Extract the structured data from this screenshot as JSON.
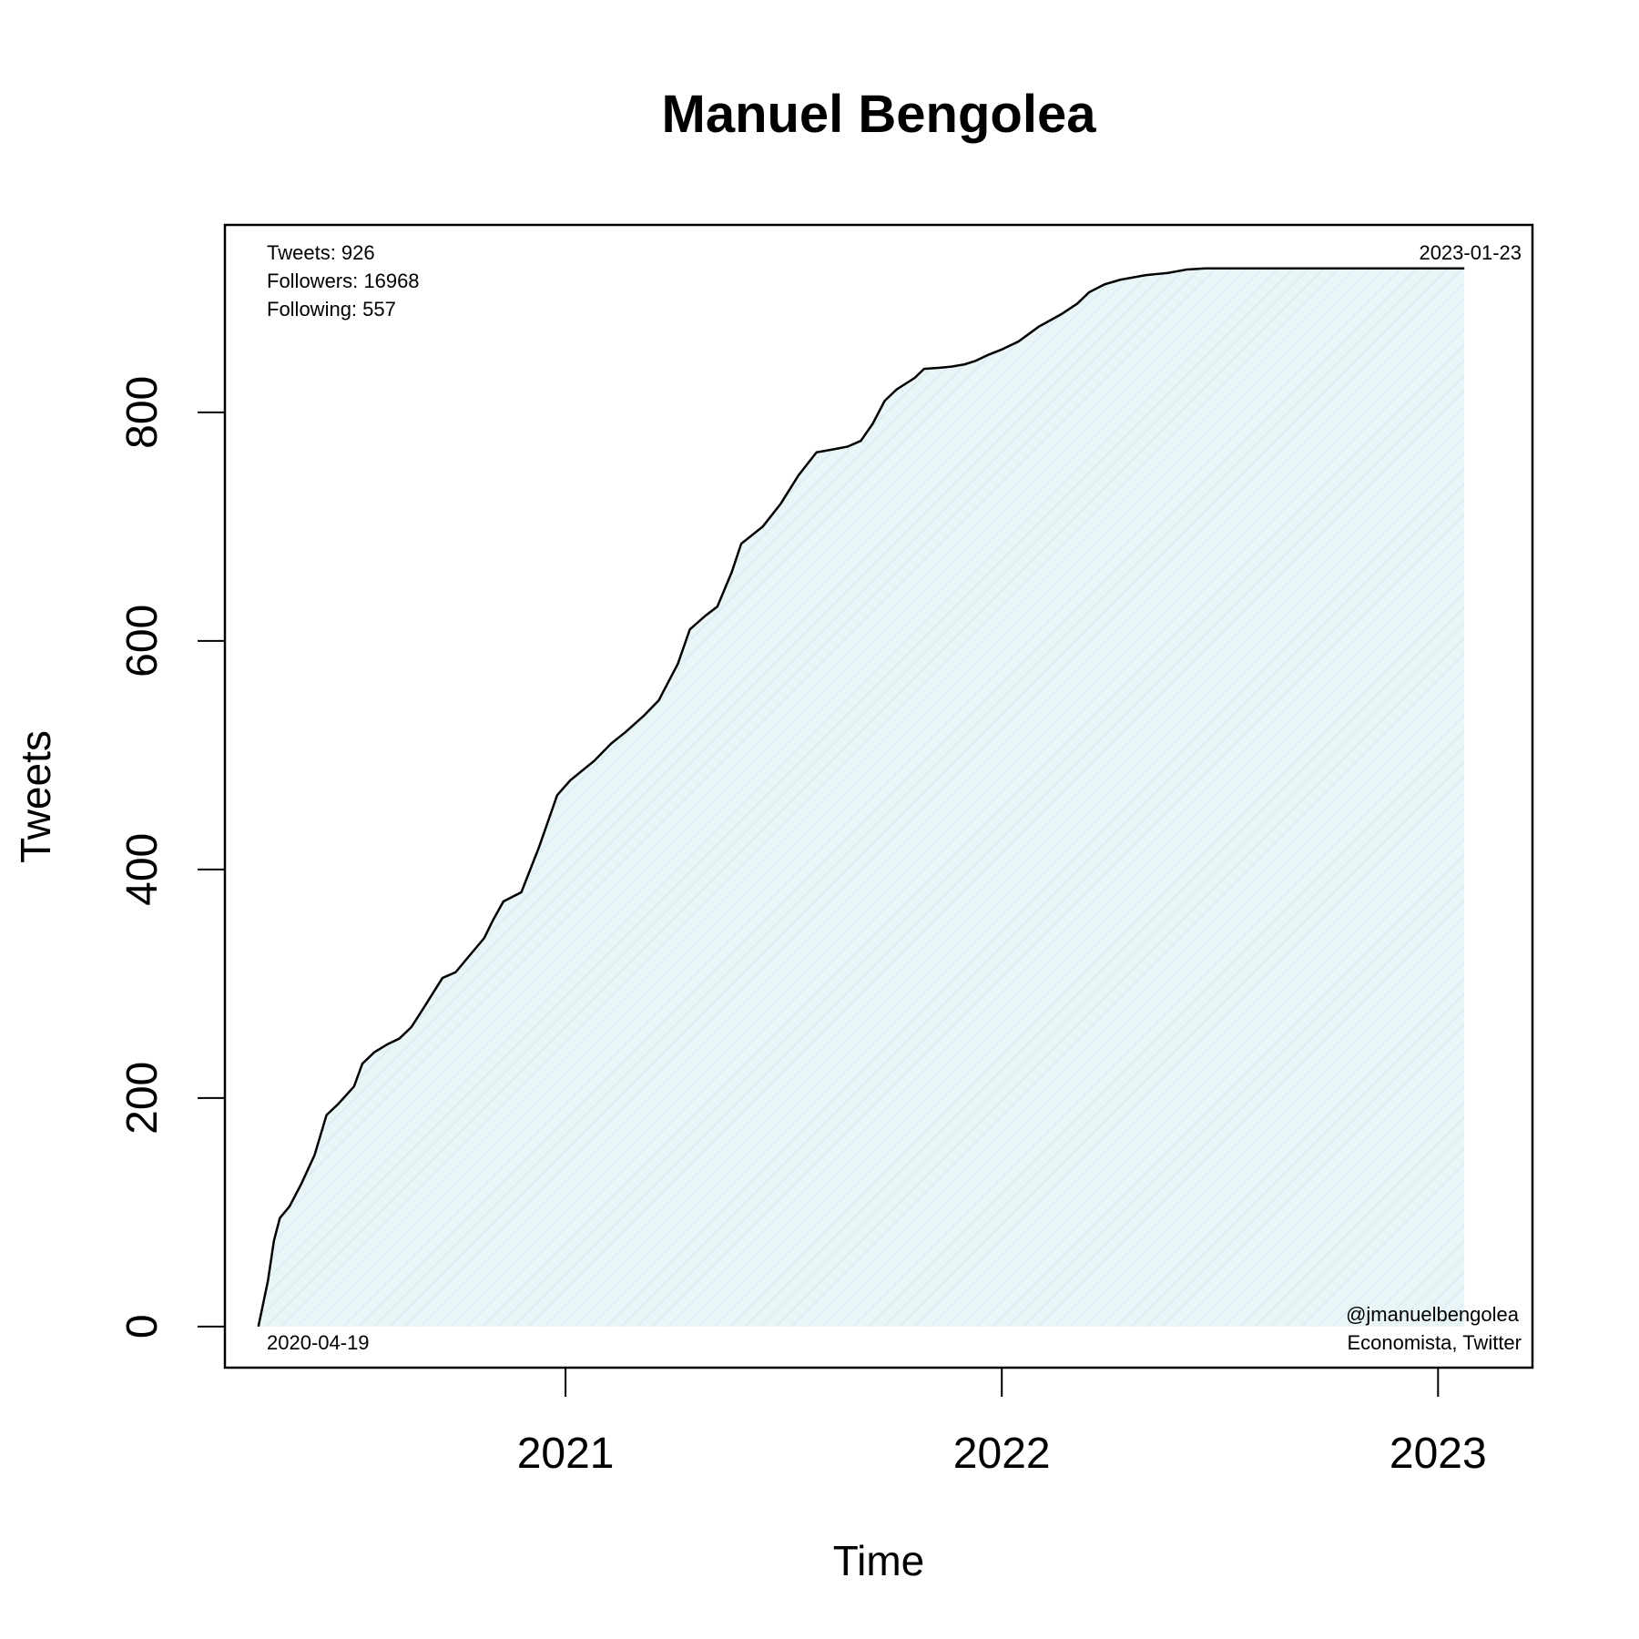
{
  "chart_data": {
    "type": "area",
    "title": "Manuel Bengolea",
    "xlabel": "Time",
    "ylabel": "Tweets",
    "xlim": [
      "2020-03-22",
      "2023-03-21"
    ],
    "ylim": [
      -36,
      964
    ],
    "x_ticks": [
      "2021-01-01",
      "2022-01-01",
      "2023-01-01"
    ],
    "x_tick_labels": [
      "2021",
      "2022",
      "2023"
    ],
    "y_ticks": [
      0,
      200,
      400,
      600,
      800
    ],
    "y_tick_labels": [
      "0",
      "200",
      "400",
      "600",
      "800"
    ],
    "grid": false,
    "fill_color": "#e8f4f8",
    "line_color": "#000000",
    "series": [
      {
        "x": [
          "2020-04-19",
          "2020-04-22",
          "2020-04-27",
          "2020-05-02",
          "2020-05-07",
          "2020-05-15",
          "2020-05-25",
          "2020-06-05",
          "2020-06-15",
          "2020-06-25",
          "2020-07-08",
          "2020-07-15",
          "2020-07-25",
          "2020-08-05",
          "2020-08-15",
          "2020-08-25",
          "2020-09-05",
          "2020-09-20",
          "2020-10-01",
          "2020-10-25",
          "2020-11-01",
          "2020-11-10",
          "2020-11-25",
          "2020-12-10",
          "2020-12-25",
          "2021-01-05",
          "2021-01-25",
          "2021-02-08",
          "2021-02-20",
          "2021-03-08",
          "2021-03-20",
          "2021-04-05",
          "2021-04-15",
          "2021-04-28",
          "2021-05-08",
          "2021-05-20",
          "2021-05-28",
          "2021-06-15",
          "2021-06-30",
          "2021-07-15",
          "2021-07-30",
          "2021-08-15",
          "2021-08-25",
          "2021-09-05",
          "2021-09-15",
          "2021-09-25",
          "2021-10-05",
          "2021-10-20",
          "2021-10-28",
          "2021-11-10",
          "2021-11-20",
          "2021-12-01",
          "2021-12-10",
          "2021-12-20",
          "2022-01-01",
          "2022-01-15",
          "2022-02-01",
          "2022-02-20",
          "2022-03-05",
          "2022-03-15",
          "2022-03-28",
          "2022-04-10",
          "2022-05-01",
          "2022-05-20",
          "2022-06-05",
          "2022-06-20",
          "2022-07-05",
          "2022-07-20",
          "2022-08-01",
          "2022-08-15",
          "2022-09-01",
          "2022-09-20",
          "2022-10-05",
          "2022-10-20",
          "2022-11-05",
          "2022-11-20",
          "2022-12-10",
          "2022-12-28",
          "2023-01-10",
          "2023-01-23"
        ],
        "y": [
          0,
          15,
          40,
          75,
          95,
          105,
          125,
          150,
          185,
          195,
          210,
          230,
          240,
          247,
          252,
          262,
          280,
          305,
          310,
          340,
          355,
          372,
          380,
          420,
          465,
          478,
          495,
          510,
          520,
          535,
          548,
          580,
          610,
          622,
          630,
          660,
          685,
          700,
          720,
          745,
          765,
          768,
          770,
          775,
          790,
          810,
          820,
          830,
          838,
          839,
          840,
          842,
          845,
          850,
          855,
          862,
          875,
          886,
          895,
          905,
          912,
          916,
          920,
          922,
          925,
          926,
          926,
          926,
          926,
          926,
          926,
          926,
          926,
          926,
          926,
          926,
          926,
          926,
          926,
          926
        ]
      }
    ],
    "annotations": {
      "top_left": [
        "Tweets: 926",
        "Followers: 16968",
        "Following: 557"
      ],
      "top_right": "2023-01-23",
      "bottom_left": "2020-04-19",
      "bottom_right": [
        "@jmanuelbengolea",
        "Economista, Twitter"
      ]
    }
  }
}
